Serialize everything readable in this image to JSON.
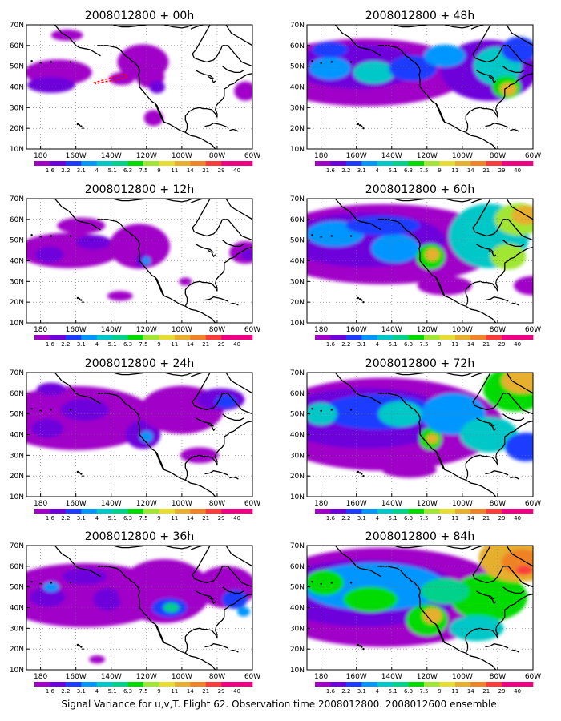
{
  "figure": {
    "caption": "Signal Variance for u,v,T. Flight 62. Observation time 2008012800. 2008012600 ensemble."
  },
  "panels": [
    {
      "title": "2008012800 + 00h",
      "forecast_hour": 0
    },
    {
      "title": "2008012800 + 12h",
      "forecast_hour": 12
    },
    {
      "title": "2008012800 + 24h",
      "forecast_hour": 24
    },
    {
      "title": "2008012800 + 36h",
      "forecast_hour": 36
    },
    {
      "title": "2008012800 + 48h",
      "forecast_hour": 48
    },
    {
      "title": "2008012800 + 60h",
      "forecast_hour": 60
    },
    {
      "title": "2008012800 + 72h",
      "forecast_hour": 72
    },
    {
      "title": "2008012800 + 84h",
      "forecast_hour": 84
    }
  ],
  "axes": {
    "lon_ticks": [
      "180",
      "160W",
      "140W",
      "120W",
      "100W",
      "80W",
      "60W"
    ],
    "lon_values": [
      180,
      200,
      220,
      240,
      260,
      280,
      300
    ],
    "lat_ticks": [
      "70N",
      "60N",
      "50N",
      "40N",
      "30N",
      "20N",
      "10N"
    ],
    "lat_values": [
      70,
      60,
      50,
      40,
      30,
      20,
      10
    ],
    "lon_range": [
      172,
      300
    ],
    "lat_range": [
      10,
      70
    ],
    "grid": "dotted"
  },
  "colorbar": {
    "levels": [
      "1.6",
      "2.2",
      "3.1",
      "4",
      "5.1",
      "6.3",
      "7.5",
      "9",
      "11",
      "14",
      "21",
      "29",
      "40"
    ],
    "colors": [
      "#a000c8",
      "#6e00dc",
      "#1e3cff",
      "#0096ff",
      "#00c8c8",
      "#00d28c",
      "#00dc00",
      "#a0e632",
      "#e6dc32",
      "#e6af2d",
      "#f08228",
      "#fa3c3c",
      "#f00082"
    ]
  },
  "flight_track_color": "#ff0000"
}
